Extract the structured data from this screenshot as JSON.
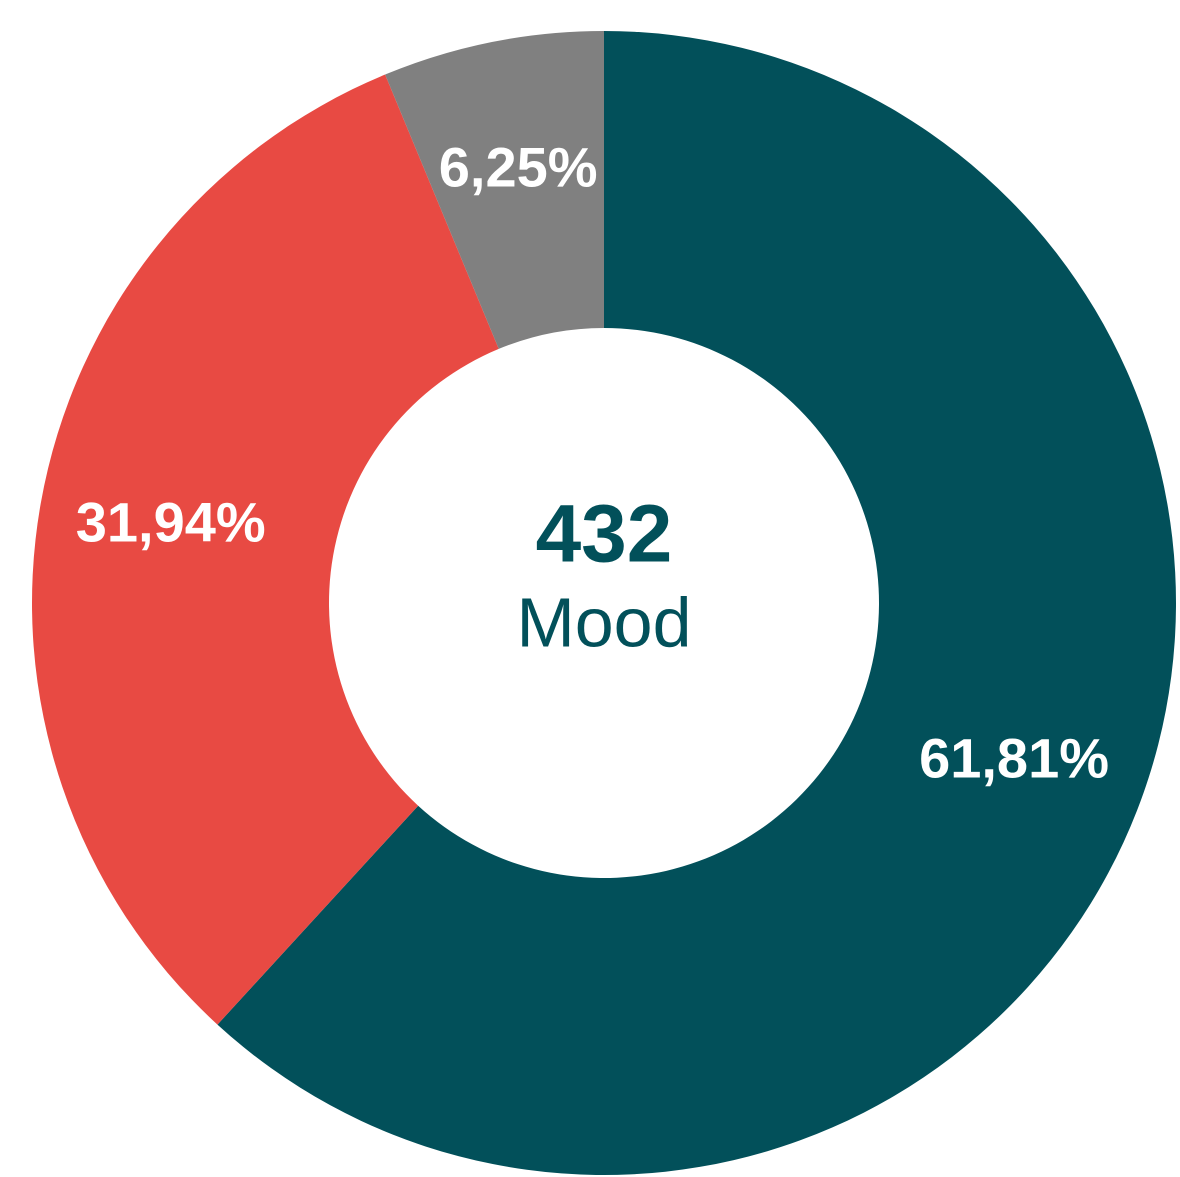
{
  "chart_data": {
    "type": "donut",
    "categories": [
      null,
      null,
      null
    ],
    "series": [
      {
        "values": [
          61.81,
          31.94,
          6.25
        ],
        "value_labels": [
          "61,81%",
          "31,94%",
          "6,25%"
        ],
        "colors": [
          "#02505a",
          "#e84a43",
          "#808080"
        ]
      }
    ],
    "center_value": 432,
    "center_label": "Mood"
  }
}
